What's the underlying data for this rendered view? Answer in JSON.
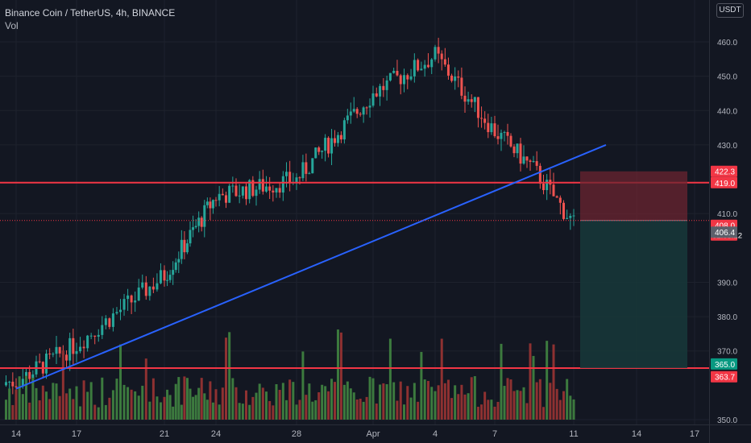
{
  "legend": {
    "title": "Binance Coin / TetherUS, 4h, BINANCE",
    "volume_label": "Vol"
  },
  "currency_button": "USDT",
  "colors": {
    "background": "#131722",
    "grid": "#1e222d",
    "up": "#26a69a",
    "down": "#ef5350",
    "level_line": "#f23645",
    "trend_line": "#2962ff",
    "volume_up": "#3c7a3e",
    "volume_down": "#8e3131",
    "stop_zone": "#6b2430",
    "target_zone": "#17383a",
    "axis_text": "#b2b5be"
  },
  "chart_data": {
    "type": "candlestick",
    "symbol": "BNBUSDT",
    "interval": "4h",
    "exchange": "BINANCE",
    "ylim": [
      349,
      463
    ],
    "y_ticks": [
      350,
      370,
      380,
      390,
      410,
      430,
      440,
      450,
      460
    ],
    "x_ticks": [
      "14",
      "17",
      "21",
      "24",
      "28",
      "Apr",
      "4",
      "7",
      "11",
      "14",
      "17"
    ],
    "key_points": [
      {
        "x": "14",
        "y": 361
      },
      {
        "x": "17",
        "y": 372
      },
      {
        "x": "21",
        "y": 392
      },
      {
        "x": "24",
        "y": 415
      },
      {
        "x": "28",
        "y": 420
      },
      {
        "x": "Apr",
        "y": 445
      },
      {
        "x": "4",
        "y": 456
      },
      {
        "x": "7",
        "y": 434
      },
      {
        "x": "9",
        "y": 423
      },
      {
        "x": "11",
        "y": 407
      }
    ],
    "horizontal_levels": [
      419.0,
      365.0
    ],
    "trend_line": {
      "from": {
        "x": "14",
        "y": 359
      },
      "to": {
        "x": "13",
        "y": 430
      }
    },
    "position": {
      "entry": 408.0,
      "stop": 422.3,
      "target": 365.0
    },
    "price_labels": [
      {
        "value": "422.3",
        "color": "#f23645"
      },
      {
        "value": "419.0",
        "color": "#f23645"
      },
      {
        "value": "408.0",
        "sub": "01:03:12",
        "color": "#f23645"
      },
      {
        "value": "406.4",
        "color": "#5d606b"
      },
      {
        "value": "365.0",
        "color": "#089981"
      },
      {
        "value": "363.7",
        "color": "#f23645"
      }
    ]
  }
}
